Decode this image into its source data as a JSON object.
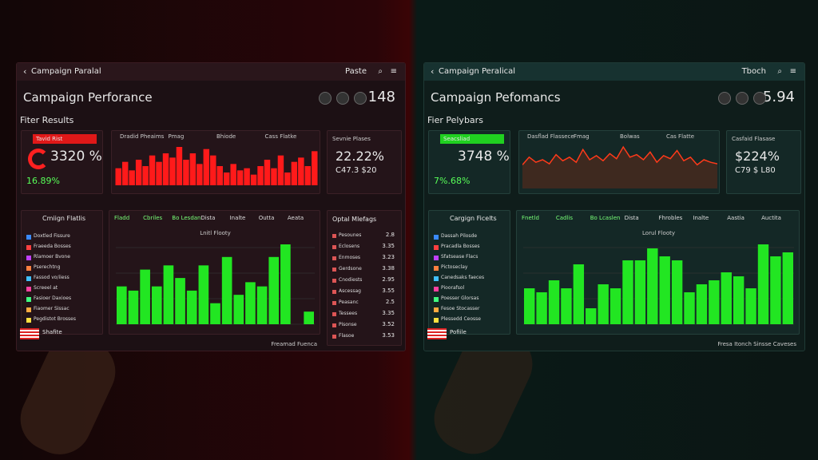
{
  "panels": [
    {
      "topbar": {
        "title": "Campaign Paralal",
        "action": "Paste"
      },
      "heading": "Campaign Perforance",
      "heading_value": "148",
      "section": "Fiter Results",
      "kpi": {
        "label": "Tavid Rist",
        "value": "3320 %",
        "sub": "16.89%"
      },
      "trend": {
        "type": "bar",
        "legend": [
          "Dradid Pheaims",
          "Pmag",
          "Bhiode",
          "Cass Flatke"
        ],
        "color": "#ff1a1a",
        "values": [
          40,
          55,
          35,
          60,
          45,
          70,
          55,
          75,
          65,
          90,
          60,
          75,
          50,
          85,
          70,
          45,
          30,
          50,
          35,
          40,
          25,
          45,
          60,
          40,
          70,
          30,
          55,
          65,
          45,
          80
        ]
      },
      "stat": {
        "label": "Sevnie Plases",
        "value": "22.22%",
        "sub": "C47.3 $20"
      },
      "list": {
        "title": "Cmiign Flatlis",
        "items": [
          "Doxtled Fissure",
          "Fraeeda Bosses",
          "Rlamoer Bvone",
          "Pserechtng",
          "Fassod vo/iiess",
          "Screeel at",
          "Fasioer Daxioes",
          "Fiaomer Sissac",
          "Pegdistot Brosses"
        ],
        "footer": "Shafite"
      },
      "bars": {
        "title": "Lnitl Flooty",
        "tabs": [
          "Fladd",
          "Cbriles",
          "Bo Lesdan",
          "Dista",
          "Inalte",
          "Outta",
          "Aeata"
        ],
        "color": "#22e622",
        "values": [
          45,
          40,
          65,
          45,
          70,
          55,
          40,
          70,
          25,
          80,
          35,
          50,
          45,
          80,
          95,
          0,
          15
        ]
      },
      "side": {
        "title": "Optal Mlefags",
        "rows": [
          {
            "label": "Pesounes",
            "value": "2.8"
          },
          {
            "label": "Eclosens",
            "value": "3.35"
          },
          {
            "label": "Enmoses",
            "value": "3.23"
          },
          {
            "label": "Gerdsone",
            "value": "3.38"
          },
          {
            "label": "Cnodiests",
            "value": "2.95"
          },
          {
            "label": "Ascessag",
            "value": "3.55"
          },
          {
            "label": "Peasanc",
            "value": "2.5"
          },
          {
            "label": "Tessees",
            "value": "3.35"
          },
          {
            "label": "Pisonse",
            "value": "3.52"
          },
          {
            "label": "Flasoe",
            "value": "3.53"
          }
        ]
      },
      "footer": "Freamad Fuenca"
    },
    {
      "topbar": {
        "title": "Campaign Peralical",
        "action": "Tboch"
      },
      "heading": "Campaign Pefomancs",
      "heading_value": "5.94",
      "section": "Fier Pelybars",
      "kpi": {
        "label": "Seacsliad",
        "value": "3748 %",
        "sub": "7%.68%"
      },
      "trend": {
        "type": "line",
        "legend": [
          "Dasflad Flassece",
          "Fmag",
          "Bolwas",
          "Cas Flatte"
        ],
        "color": "#ff3a1a",
        "values": [
          40,
          55,
          45,
          50,
          42,
          60,
          48,
          55,
          45,
          70,
          50,
          58,
          48,
          62,
          52,
          75,
          55,
          60,
          50,
          65,
          45,
          58,
          52,
          68,
          48,
          55,
          40,
          50,
          45,
          42
        ]
      },
      "stat": {
        "label": "Casfaid Flasase",
        "value": "$224%",
        "sub": "C79 $ L80"
      },
      "list": {
        "title": "Cargign Ficelts",
        "items": [
          "Dassah Pilosde",
          "Pracadla Bosses",
          "Sfatsease Flacs",
          "Pictoseclay",
          "Canedsaks faeces",
          "Pioorafsol",
          "Poesser Glorsas",
          "Fesoe Stocasser",
          "Plessedd Ceosse"
        ],
        "footer": "Pofiile"
      },
      "bars": {
        "title": "Lorul Flooty",
        "tabs": [
          "Fnetld",
          "Cadlis",
          "Bo Lcaslen",
          "Dista",
          "Fhrobles",
          "Inalte",
          "Aastia",
          "Auctita"
        ],
        "color": "#22e622",
        "values": [
          45,
          40,
          55,
          45,
          75,
          20,
          50,
          45,
          80,
          80,
          95,
          85,
          80,
          40,
          50,
          55,
          65,
          60,
          45,
          100,
          85,
          90
        ]
      },
      "footer": "Fresa Itonch Sinsse Caveses"
    }
  ]
}
